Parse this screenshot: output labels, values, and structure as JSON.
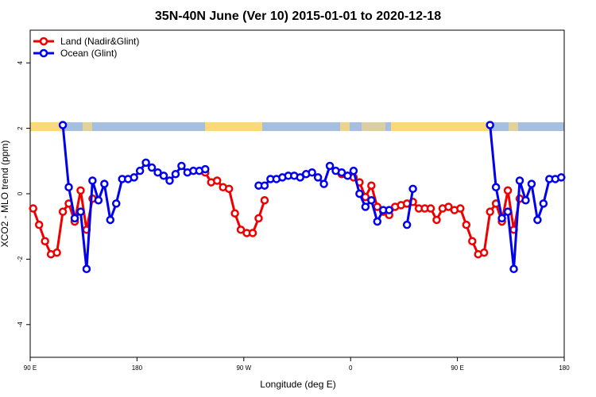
{
  "chart_data": {
    "type": "line",
    "title": "35N-40N June (Ver 10)   2015-01-01 to 2020-12-18",
    "x_label": "Longitude (deg E)",
    "y_label": "XCO2 - MLO trend (ppm)",
    "x": [
      92.5,
      97.5,
      102.5,
      107.5,
      112.5,
      117.5,
      122.5,
      127.5,
      132.5,
      137.5,
      142.5,
      147.5,
      152.5,
      157.5,
      162.5,
      167.5,
      172.5,
      177.5,
      182.5,
      187.5,
      192.5,
      197.5,
      202.5,
      207.5,
      212.5,
      217.5,
      222.5,
      227.5,
      232.5,
      237.5,
      242.5,
      247.5,
      252.5,
      257.5,
      262.5,
      267.5,
      272.5,
      277.5,
      282.5,
      287.5,
      292.5,
      297.5,
      302.5,
      307.5,
      312.5,
      317.5,
      322.5,
      327.5,
      332.5,
      337.5,
      342.5,
      347.5,
      352.5,
      357.5,
      362.5,
      367.5,
      372.5,
      377.5,
      382.5,
      387.5,
      392.5,
      397.5,
      402.5,
      407.5,
      412.5,
      417.5,
      422.5,
      427.5,
      432.5,
      437.5,
      442.5,
      447.5,
      452.5,
      457.5,
      462.5,
      467.5,
      472.5,
      477.5,
      482.5,
      487.5,
      492.5,
      497.5,
      502.5,
      507.5,
      512.5,
      517.5,
      522.5,
      527.5,
      532.5,
      537.5
    ],
    "series": [
      {
        "name": "Land (Nadir&Glint)",
        "color": "#ee0000",
        "values": [
          -0.45,
          -0.95,
          -1.45,
          -1.85,
          -1.8,
          -0.55,
          -0.3,
          -0.85,
          0.1,
          -1.1,
          -0.15,
          null,
          null,
          null,
          null,
          null,
          null,
          null,
          null,
          null,
          null,
          null,
          null,
          null,
          null,
          null,
          null,
          null,
          null,
          0.65,
          0.35,
          0.4,
          0.2,
          0.15,
          -0.6,
          -1.1,
          -1.2,
          -1.2,
          -0.75,
          -0.2,
          null,
          null,
          null,
          null,
          null,
          null,
          null,
          null,
          null,
          null,
          null,
          null,
          0.6,
          0.55,
          0.5,
          0.35,
          -0.1,
          0.25,
          -0.4,
          -0.55,
          -0.65,
          -0.4,
          -0.35,
          -0.3,
          -0.25,
          -0.45,
          -0.45,
          -0.45,
          -0.8,
          -0.45,
          -0.4,
          -0.5,
          -0.45,
          -0.95,
          -1.45,
          -1.85,
          -1.8,
          -0.55,
          -0.3,
          -0.85,
          0.1,
          -1.1,
          -0.15,
          null,
          null,
          null,
          null,
          null,
          null,
          null
        ]
      },
      {
        "name": "Ocean (Glint)",
        "color": "#0000ee",
        "values": [
          null,
          null,
          null,
          null,
          null,
          2.1,
          0.2,
          -0.75,
          -0.55,
          -2.3,
          0.4,
          -0.2,
          0.3,
          -0.8,
          -0.3,
          0.45,
          0.45,
          0.5,
          0.7,
          0.95,
          0.8,
          0.65,
          0.55,
          0.4,
          0.6,
          0.85,
          0.65,
          0.7,
          0.7,
          0.75,
          null,
          null,
          null,
          null,
          null,
          null,
          null,
          null,
          0.25,
          0.25,
          0.45,
          0.45,
          0.5,
          0.55,
          0.55,
          0.5,
          0.6,
          0.65,
          0.5,
          0.3,
          0.85,
          0.7,
          0.65,
          0.55,
          0.7,
          0.0,
          -0.4,
          -0.2,
          -0.85,
          -0.5,
          -0.5,
          null,
          null,
          -0.95,
          0.15,
          null,
          null,
          null,
          null,
          null,
          null,
          null,
          null,
          null,
          null,
          null,
          null,
          2.1,
          0.2,
          -0.75,
          -0.55,
          -2.3,
          0.4,
          -0.2,
          0.3,
          -0.8,
          -0.3,
          0.45,
          0.45,
          0.5
        ]
      }
    ],
    "xlim": [
      90,
      540
    ],
    "xticks": [
      {
        "value": 90,
        "label": "90 E"
      },
      {
        "value": 180,
        "label": "180"
      },
      {
        "value": 270,
        "label": "90 W"
      },
      {
        "value": 360,
        "label": "0"
      },
      {
        "value": 450,
        "label": "90 E"
      },
      {
        "value": 540,
        "label": "180"
      }
    ],
    "ylim": [
      -5,
      5
    ],
    "yticks": [
      -4,
      -2,
      0,
      2,
      4
    ],
    "legend": "top-left"
  }
}
